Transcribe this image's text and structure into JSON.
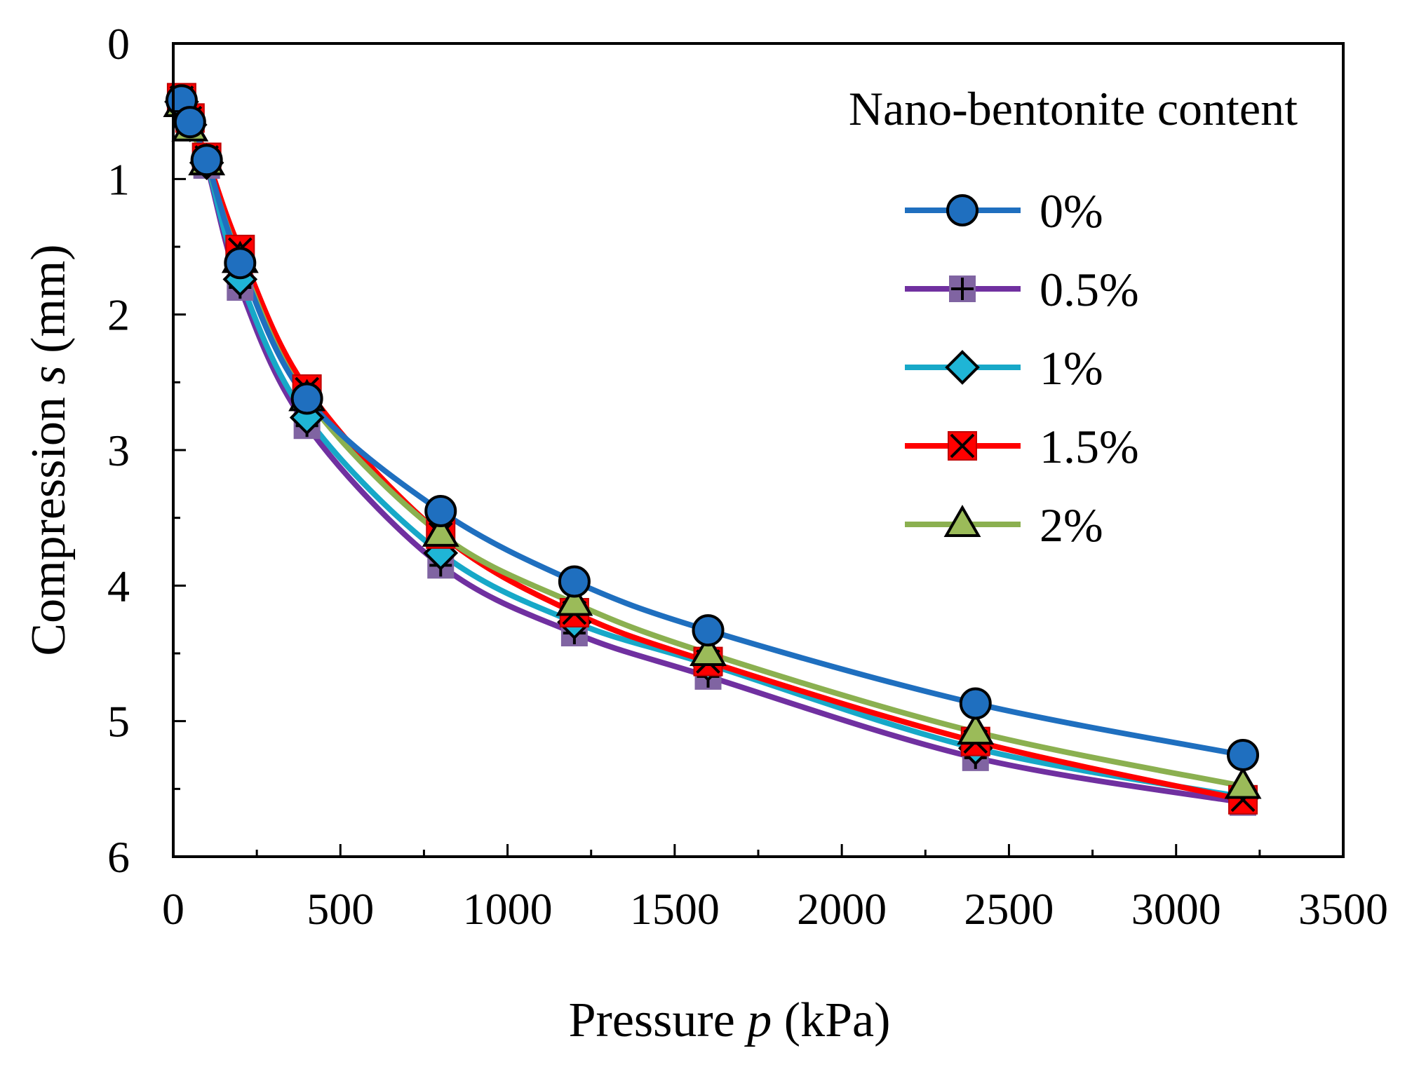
{
  "chart_data": {
    "type": "line",
    "xlabel": "Pressure ",
    "xlabel_var": "p",
    "xlabel_unit": " (kPa)",
    "ylabel": "Compression ",
    "ylabel_var": "s",
    "ylabel_unit": " (mm)",
    "xlim": [
      0,
      3500
    ],
    "ylim": [
      0,
      6
    ],
    "y_inverted": true,
    "x_ticks": [
      0,
      500,
      1000,
      1500,
      2000,
      2500,
      3000,
      3500
    ],
    "y_ticks": [
      0,
      1,
      2,
      3,
      4,
      5,
      6
    ],
    "grid": false,
    "legend_title": "Nano-bentonite content",
    "legend_position": "top-right",
    "x": [
      25,
      50,
      100,
      200,
      400,
      800,
      1200,
      1600,
      2400,
      3200
    ],
    "series": [
      {
        "name": "0%",
        "color": "#1f6fbf",
        "marker": "circle",
        "marker_fill": "#1f6fbf",
        "values": [
          0.42,
          0.58,
          0.86,
          1.62,
          2.62,
          3.45,
          3.97,
          4.33,
          4.87,
          5.25
        ]
      },
      {
        "name": "0.5%",
        "color": "#7030a0",
        "marker": "square-plus",
        "marker_fill": "#8064a2",
        "values": [
          0.44,
          0.62,
          0.9,
          1.8,
          2.82,
          3.85,
          4.35,
          4.67,
          5.27,
          5.6
        ]
      },
      {
        "name": "1%",
        "color": "#17a8c8",
        "marker": "diamond",
        "marker_fill": "#1fb5d6",
        "values": [
          0.43,
          0.6,
          0.88,
          1.74,
          2.76,
          3.76,
          4.27,
          4.58,
          5.2,
          5.56
        ]
      },
      {
        "name": "1.5%",
        "color": "#ff0000",
        "marker": "square-x",
        "marker_fill": "#ff0000",
        "values": [
          0.4,
          0.55,
          0.84,
          1.52,
          2.55,
          3.62,
          4.2,
          4.56,
          5.15,
          5.58
        ]
      },
      {
        "name": "2%",
        "color": "#8bb050",
        "marker": "triangle",
        "marker_fill": "#9bbb59",
        "values": [
          0.45,
          0.63,
          0.88,
          1.6,
          2.62,
          3.62,
          4.13,
          4.5,
          5.08,
          5.48
        ]
      }
    ]
  }
}
